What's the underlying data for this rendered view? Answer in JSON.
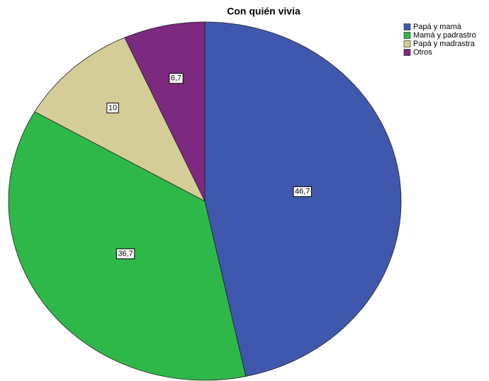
{
  "chart_data": {
    "type": "pie",
    "title": "Con quién vivia",
    "categories": [
      "Papá y mamá",
      "Mamá y padrastro",
      "Papá y madrastra",
      "Otros"
    ],
    "values": [
      46.7,
      36.7,
      10,
      6.7
    ],
    "value_labels": [
      "46,7",
      "36,7",
      "10",
      "6,7"
    ],
    "colors": [
      "#3f58ad",
      "#2eb84a",
      "#d5cd98",
      "#7c2a7f"
    ],
    "legend": "top-right"
  }
}
